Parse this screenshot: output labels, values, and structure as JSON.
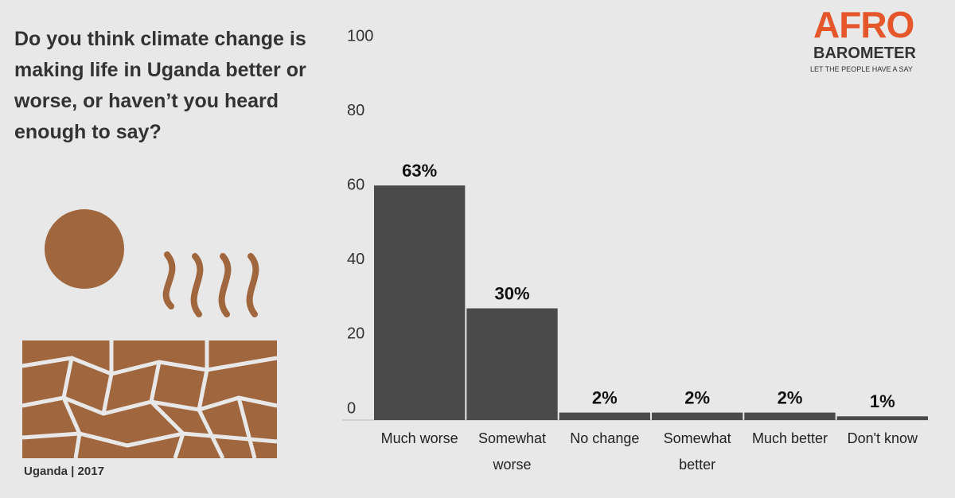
{
  "chart_data": {
    "type": "bar",
    "title": "Do you think climate change is making life in Uganda better or worse, or haven’t you heard enough to say?",
    "categories": [
      "Much worse",
      "Somewhat worse",
      "No change",
      "Somewhat better",
      "Much better",
      "Don't know"
    ],
    "values": [
      63,
      30,
      2,
      2,
      2,
      1
    ],
    "value_labels": [
      "63%",
      "30%",
      "2%",
      "2%",
      "2%",
      "1%"
    ],
    "color": "#4a4a4a",
    "ylim": [
      0,
      100
    ],
    "yticks": [
      0,
      20,
      40,
      60,
      80,
      100
    ],
    "grid": false,
    "footer": "Uganda | 2017"
  },
  "logo": {
    "brand": "AFRO",
    "name": "BAROMETER",
    "tagline": "LET THE PEOPLE HAVE A SAY"
  }
}
